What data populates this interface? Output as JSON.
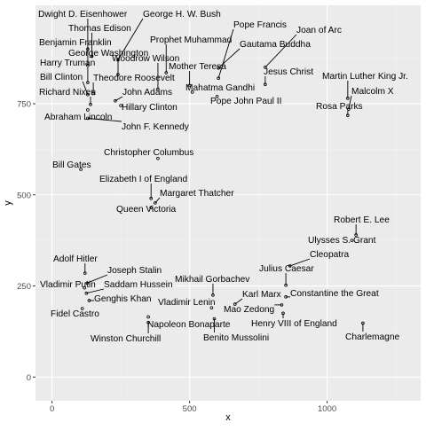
{
  "chart_data": {
    "type": "scatter",
    "title": "",
    "xlabel": "x",
    "ylabel": "y",
    "xlim": [
      -60,
      1340
    ],
    "ylim": [
      -65,
      1020
    ],
    "x_ticks": [
      0,
      500,
      1000
    ],
    "y_ticks": [
      0,
      250,
      500,
      750
    ],
    "grid": true,
    "legend": "none",
    "points": [
      {
        "label": "Dwight D. Eisenhower",
        "x": 130,
        "y": 900
      },
      {
        "label": "George H. W. Bush",
        "x": 240,
        "y": 870
      },
      {
        "label": "Thomas Edison",
        "x": 145,
        "y": 880
      },
      {
        "label": "Benjamin Franklin",
        "x": 130,
        "y": 855
      },
      {
        "label": "George Washington",
        "x": 240,
        "y": 830
      },
      {
        "label": "Harry Truman",
        "x": 130,
        "y": 808
      },
      {
        "label": "Woodrow Wilson",
        "x": 385,
        "y": 790
      },
      {
        "label": "Theodore Roosevelt",
        "x": 150,
        "y": 778
      },
      {
        "label": "Bill Clinton",
        "x": 130,
        "y": 775
      },
      {
        "label": "Richard Nixen",
        "x": 140,
        "y": 748
      },
      {
        "label": "John Adams",
        "x": 230,
        "y": 758
      },
      {
        "label": "Hillary Clinton",
        "x": 250,
        "y": 745
      },
      {
        "label": "Abraham Lincoln",
        "x": 130,
        "y": 733
      },
      {
        "label": "John F. Kennedy",
        "x": 130,
        "y": 710
      },
      {
        "label": "Prophet Muhammad",
        "x": 415,
        "y": 835
      },
      {
        "label": "Pope Francis",
        "x": 605,
        "y": 820
      },
      {
        "label": "Joan of Arc",
        "x": 775,
        "y": 850
      },
      {
        "label": "Gautama Buddha",
        "x": 605,
        "y": 848
      },
      {
        "label": "Mother Teresa",
        "x": 500,
        "y": 800
      },
      {
        "label": "Jesus Christ",
        "x": 775,
        "y": 803
      },
      {
        "label": "Mahatma Gandhi",
        "x": 510,
        "y": 782
      },
      {
        "label": "Pope John Paul II",
        "x": 600,
        "y": 770
      },
      {
        "label": "Martin Luther King Jr.",
        "x": 1075,
        "y": 765
      },
      {
        "label": "Malcolm X",
        "x": 1078,
        "y": 735
      },
      {
        "label": "Rosa Parks",
        "x": 1075,
        "y": 718
      },
      {
        "label": "Christopher Columbus",
        "x": 385,
        "y": 600
      },
      {
        "label": "Bill Gates",
        "x": 105,
        "y": 570
      },
      {
        "label": "Elizabeth I of England",
        "x": 360,
        "y": 490
      },
      {
        "label": "Margaret Thatcher",
        "x": 375,
        "y": 478
      },
      {
        "label": "Queen Victoria",
        "x": 360,
        "y": 465
      },
      {
        "label": "Robert E. Lee",
        "x": 1105,
        "y": 390
      },
      {
        "label": "Ulysses S. Grant",
        "x": 1090,
        "y": 375
      },
      {
        "label": "Cleopatra",
        "x": 865,
        "y": 305
      },
      {
        "label": "Julius Caesar",
        "x": 850,
        "y": 252
      },
      {
        "label": "Constantine the Great",
        "x": 850,
        "y": 220
      },
      {
        "label": "Karl Marx",
        "x": 665,
        "y": 200
      },
      {
        "label": "Mikhail Gorbachev",
        "x": 585,
        "y": 225
      },
      {
        "label": "Vladimir Lenin",
        "x": 580,
        "y": 190
      },
      {
        "label": "Mao Zedong",
        "x": 835,
        "y": 198
      },
      {
        "label": "Henry VIII of England",
        "x": 840,
        "y": 175
      },
      {
        "label": "Charlemagne",
        "x": 1130,
        "y": 148
      },
      {
        "label": "Benito Mussolini",
        "x": 590,
        "y": 160
      },
      {
        "label": "Adolf Hitler",
        "x": 120,
        "y": 285
      },
      {
        "label": "Joseph Stalin",
        "x": 128,
        "y": 258
      },
      {
        "label": "Vladimir Putin",
        "x": 118,
        "y": 245
      },
      {
        "label": "Saddam Hussein",
        "x": 125,
        "y": 230
      },
      {
        "label": "Genghis Khan",
        "x": 135,
        "y": 210
      },
      {
        "label": "Fidel Castro",
        "x": 110,
        "y": 188
      },
      {
        "label": "Napoleon Bonaparte",
        "x": 350,
        "y": 165
      },
      {
        "label": "Winston Churchill",
        "x": 350,
        "y": 150
      }
    ]
  }
}
